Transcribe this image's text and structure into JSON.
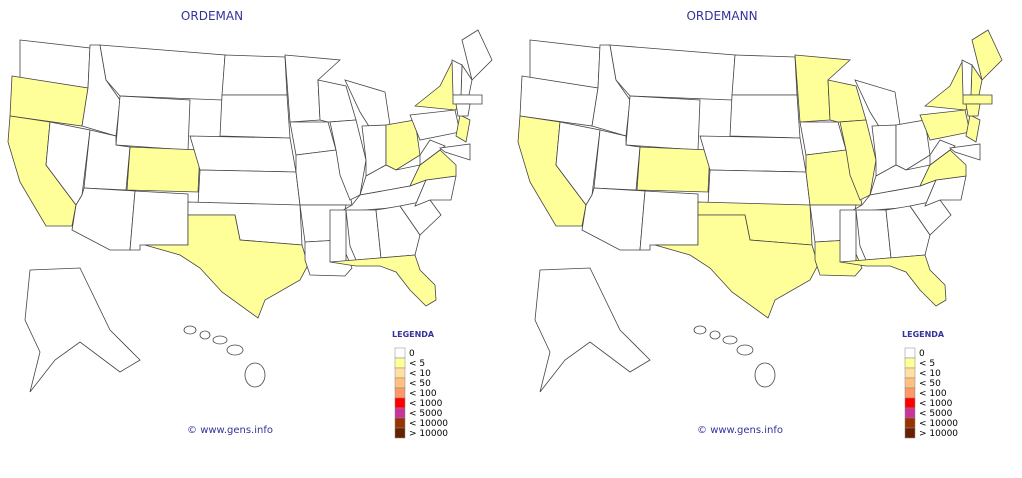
{
  "maps": [
    {
      "title": "ORDEMAN",
      "legend": {
        "title": "LEGENDA",
        "items": [
          {
            "label": "0",
            "color": "#ffffff"
          },
          {
            "label": "< 5",
            "color": "#ffff99"
          },
          {
            "label": "< 10",
            "color": "#ffe0a0"
          },
          {
            "label": "< 50",
            "color": "#ffc080"
          },
          {
            "label": "< 100",
            "color": "#ff9966"
          },
          {
            "label": "< 1000",
            "color": "#ff0000"
          },
          {
            "label": "< 5000",
            "color": "#cc3399"
          },
          {
            "label": "< 10000",
            "color": "#993300"
          },
          {
            "label": "> 10000",
            "color": "#662200"
          }
        ]
      },
      "footer": "© www.gens.info"
    },
    {
      "title": "ORDEMANN",
      "legend": {
        "title": "LEGENDA",
        "items": [
          {
            "label": "0",
            "color": "#ffffff"
          },
          {
            "label": "< 5",
            "color": "#ffff99"
          },
          {
            "label": "< 10",
            "color": "#ffe0a0"
          },
          {
            "label": "< 50",
            "color": "#ffc080"
          },
          {
            "label": "< 100",
            "color": "#ff9966"
          },
          {
            "label": "< 1000",
            "color": "#ff0000"
          },
          {
            "label": "< 5000",
            "color": "#cc3399"
          },
          {
            "label": "< 10000",
            "color": "#993300"
          },
          {
            "label": "> 10000",
            "color": "#662200"
          }
        ]
      },
      "footer": "© www.gens.info"
    }
  ]
}
